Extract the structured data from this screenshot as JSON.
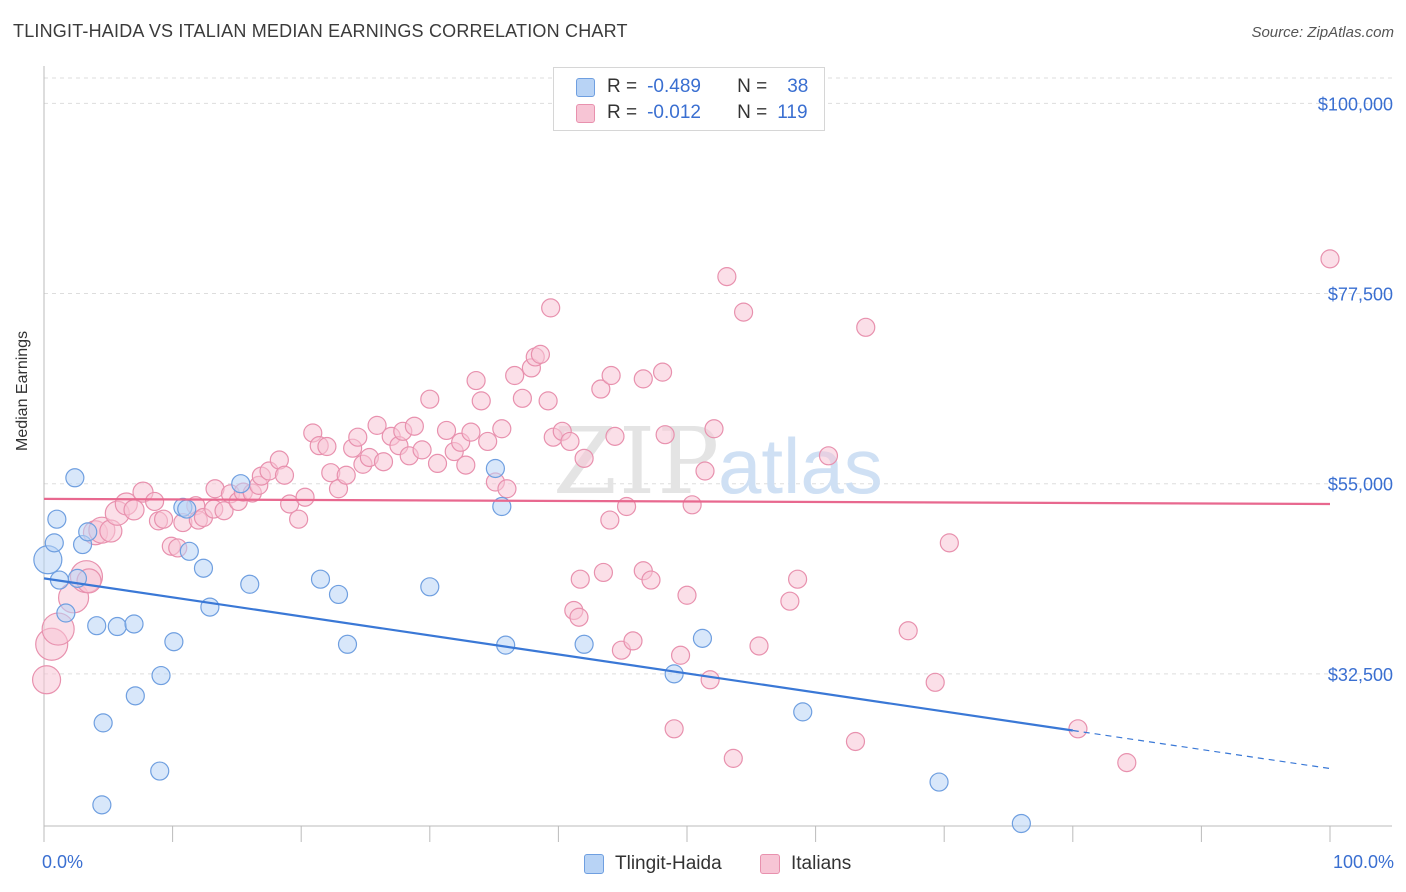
{
  "title": "TLINGIT-HAIDA VS ITALIAN MEDIAN EARNINGS CORRELATION CHART",
  "source": "Source: ZipAtlas.com",
  "watermark": {
    "part1": "ZIP",
    "part2": "atlas"
  },
  "legend": {
    "rows": [
      {
        "r_label": "R =",
        "r_value": "-0.489",
        "n_label": "N =",
        "n_value": "38"
      },
      {
        "r_label": "R =",
        "r_value": "-0.012",
        "n_label": "N =",
        "n_value": "119"
      }
    ]
  },
  "bottom_legend": {
    "series1": "Tlingit-Haida",
    "series2": "Italians"
  },
  "colors": {
    "blue_fill": "#b8d3f5",
    "blue_stroke": "#6f9fe0",
    "blue_line": "#3a78d6",
    "pink_fill": "#f7c5d5",
    "pink_stroke": "#e891ae",
    "pink_line": "#e8688f",
    "axis_text": "#3a6fd1"
  },
  "chart_data": {
    "type": "scatter",
    "title": "TLINGIT-HAIDA VS ITALIAN MEDIAN EARNINGS CORRELATION CHART",
    "xlabel": "",
    "ylabel": "Median Earnings",
    "xlim": [
      0,
      100
    ],
    "ylim": [
      14500,
      103000
    ],
    "x_tick_labels": [
      "0.0%",
      "100.0%"
    ],
    "y_ticks": [
      32500,
      55000,
      77500,
      100000
    ],
    "y_tick_labels": [
      "$32,500",
      "$55,000",
      "$77,500",
      "$100,000"
    ],
    "series": [
      {
        "name": "Tlingit-Haida",
        "R": -0.489,
        "N": 38,
        "trend": {
          "x0": 0,
          "y0": 43800,
          "x1": 80,
          "y1": 25800,
          "dashed_to_x": 100,
          "dashed_to_y": 21300
        },
        "points": [
          [
            0.3,
            46000,
            14
          ],
          [
            0.8,
            48000,
            9
          ],
          [
            1.0,
            50800,
            9
          ],
          [
            2.4,
            55700,
            9
          ],
          [
            1.2,
            43600,
            9
          ],
          [
            1.7,
            39700,
            9
          ],
          [
            2.6,
            43800,
            9
          ],
          [
            3.0,
            47800,
            9
          ],
          [
            3.4,
            49300,
            9
          ],
          [
            4.1,
            38200,
            9
          ],
          [
            5.7,
            38100,
            9
          ],
          [
            7.0,
            38400,
            9
          ],
          [
            4.6,
            26700,
            9
          ],
          [
            7.1,
            29900,
            9
          ],
          [
            9.0,
            21000,
            9
          ],
          [
            4.5,
            17000,
            9
          ],
          [
            9.1,
            32300,
            9
          ],
          [
            10.1,
            36300,
            9
          ],
          [
            10.8,
            52200,
            9
          ],
          [
            11.1,
            52000,
            9
          ],
          [
            11.3,
            47000,
            9
          ],
          [
            12.4,
            45000,
            9
          ],
          [
            12.9,
            40400,
            9
          ],
          [
            15.3,
            55000,
            9
          ],
          [
            16.0,
            43100,
            9
          ],
          [
            21.5,
            43700,
            9
          ],
          [
            22.9,
            41900,
            9
          ],
          [
            23.6,
            36000,
            9
          ],
          [
            30.0,
            42800,
            9
          ],
          [
            35.1,
            56800,
            9
          ],
          [
            35.6,
            52300,
            9
          ],
          [
            35.9,
            35900,
            9
          ],
          [
            42.0,
            36000,
            9
          ],
          [
            49.0,
            32500,
            9
          ],
          [
            51.2,
            36700,
            9
          ],
          [
            59.0,
            28000,
            9
          ],
          [
            69.6,
            19700,
            9
          ],
          [
            76.0,
            14800,
            9
          ]
        ]
      },
      {
        "name": "Italians",
        "R": -0.012,
        "N": 119,
        "trend": {
          "x0": 0,
          "y0": 53200,
          "x1": 100,
          "y1": 52600
        },
        "points": [
          [
            0.2,
            31800,
            14
          ],
          [
            0.6,
            36000,
            16
          ],
          [
            1.1,
            37800,
            16
          ],
          [
            2.3,
            41500,
            15
          ],
          [
            3.3,
            44000,
            16
          ],
          [
            3.5,
            43500,
            12
          ],
          [
            4.0,
            49200,
            12
          ],
          [
            4.5,
            49500,
            13
          ],
          [
            5.2,
            49400,
            11
          ],
          [
            5.7,
            51500,
            12
          ],
          [
            6.4,
            52600,
            11
          ],
          [
            7.0,
            51900,
            10
          ],
          [
            7.7,
            54000,
            10
          ],
          [
            8.6,
            52900,
            9
          ],
          [
            8.9,
            50600,
            9
          ],
          [
            9.3,
            50800,
            9
          ],
          [
            9.9,
            47600,
            9
          ],
          [
            10.4,
            47400,
            9
          ],
          [
            10.8,
            50400,
            9
          ],
          [
            11.8,
            52400,
            9
          ],
          [
            12.0,
            50700,
            9
          ],
          [
            12.4,
            51000,
            9
          ],
          [
            13.2,
            52000,
            9
          ],
          [
            13.3,
            54400,
            9
          ],
          [
            14.0,
            51800,
            9
          ],
          [
            14.5,
            53800,
            9
          ],
          [
            15.1,
            52900,
            9
          ],
          [
            15.5,
            54000,
            9
          ],
          [
            16.2,
            53900,
            9
          ],
          [
            16.7,
            54800,
            9
          ],
          [
            16.9,
            55900,
            9
          ],
          [
            17.5,
            56500,
            9
          ],
          [
            18.3,
            57800,
            9
          ],
          [
            18.7,
            56000,
            9
          ],
          [
            19.1,
            52600,
            9
          ],
          [
            19.8,
            50800,
            9
          ],
          [
            20.3,
            53400,
            9
          ],
          [
            20.9,
            61000,
            9
          ],
          [
            21.4,
            59500,
            9
          ],
          [
            22.0,
            59400,
            9
          ],
          [
            22.3,
            56300,
            9
          ],
          [
            22.9,
            54400,
            9
          ],
          [
            23.5,
            56000,
            9
          ],
          [
            24.0,
            59200,
            9
          ],
          [
            24.4,
            60500,
            9
          ],
          [
            24.8,
            57300,
            9
          ],
          [
            25.3,
            58100,
            9
          ],
          [
            25.9,
            61900,
            9
          ],
          [
            26.4,
            57600,
            9
          ],
          [
            27.0,
            60600,
            9
          ],
          [
            27.6,
            59500,
            9
          ],
          [
            27.9,
            61200,
            9
          ],
          [
            28.4,
            58300,
            9
          ],
          [
            28.8,
            61800,
            9
          ],
          [
            29.4,
            59000,
            9
          ],
          [
            30.0,
            65000,
            9
          ],
          [
            30.6,
            57400,
            9
          ],
          [
            31.3,
            61300,
            9
          ],
          [
            31.9,
            58800,
            9
          ],
          [
            32.4,
            59900,
            9
          ],
          [
            32.8,
            57200,
            9
          ],
          [
            33.2,
            61100,
            9
          ],
          [
            33.6,
            67200,
            9
          ],
          [
            34.0,
            64800,
            9
          ],
          [
            34.5,
            60000,
            9
          ],
          [
            35.1,
            55200,
            9
          ],
          [
            35.6,
            61500,
            9
          ],
          [
            36.0,
            54400,
            9
          ],
          [
            36.6,
            67800,
            9
          ],
          [
            37.2,
            65100,
            9
          ],
          [
            37.9,
            68700,
            9
          ],
          [
            38.2,
            70000,
            9
          ],
          [
            38.6,
            70300,
            9
          ],
          [
            39.2,
            64800,
            9
          ],
          [
            39.6,
            60500,
            9
          ],
          [
            39.4,
            75800,
            9
          ],
          [
            40.3,
            61200,
            9
          ],
          [
            40.9,
            60000,
            9
          ],
          [
            41.7,
            43700,
            9
          ],
          [
            42.0,
            58000,
            9
          ],
          [
            41.2,
            40000,
            9
          ],
          [
            41.6,
            39200,
            9
          ],
          [
            43.3,
            66200,
            9
          ],
          [
            43.5,
            44500,
            9
          ],
          [
            44.1,
            67800,
            9
          ],
          [
            44.4,
            60600,
            9
          ],
          [
            44.9,
            35300,
            9
          ],
          [
            45.8,
            36400,
            9
          ],
          [
            45.3,
            52300,
            9
          ],
          [
            44.0,
            50700,
            9
          ],
          [
            46.6,
            67400,
            9
          ],
          [
            46.6,
            44700,
            9
          ],
          [
            47.2,
            43600,
            9
          ],
          [
            48.1,
            68200,
            9
          ],
          [
            48.3,
            60800,
            9
          ],
          [
            49.0,
            26000,
            9
          ],
          [
            49.5,
            34700,
            9
          ],
          [
            50.0,
            41800,
            9
          ],
          [
            50.4,
            52500,
            9
          ],
          [
            51.4,
            56500,
            9
          ],
          [
            51.8,
            31800,
            9
          ],
          [
            52.1,
            61500,
            9
          ],
          [
            53.1,
            79500,
            9
          ],
          [
            53.6,
            22500,
            9
          ],
          [
            54.4,
            75300,
            9
          ],
          [
            55.6,
            35800,
            9
          ],
          [
            58.0,
            41100,
            9
          ],
          [
            58.6,
            43700,
            9
          ],
          [
            61.0,
            58300,
            9
          ],
          [
            63.1,
            24500,
            9
          ],
          [
            63.9,
            73500,
            9
          ],
          [
            67.2,
            37600,
            9
          ],
          [
            69.3,
            31500,
            9
          ],
          [
            70.4,
            48000,
            9
          ],
          [
            80.4,
            26000,
            9
          ],
          [
            84.2,
            22000,
            9
          ],
          [
            100.0,
            81600,
            9
          ]
        ]
      }
    ]
  }
}
